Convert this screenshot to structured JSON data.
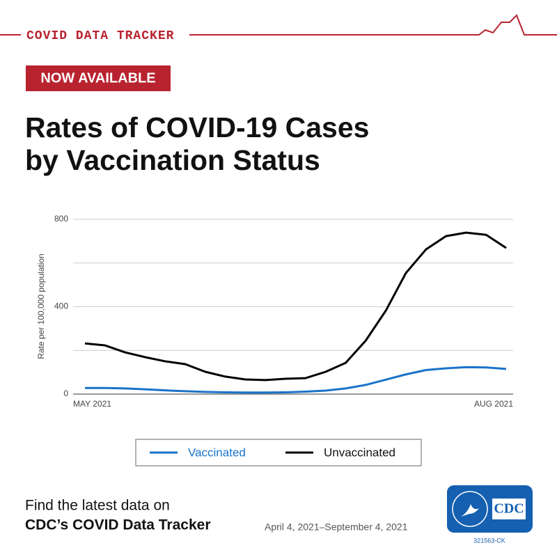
{
  "header": {
    "label": "COVID DATA TRACKER",
    "badge": "NOW AVAILABLE",
    "title_lines": [
      "Rates of COVID-19 Cases",
      "by Vaccination Status"
    ]
  },
  "chart_data": {
    "type": "line",
    "y_label": "Rate per 100,000 population",
    "categories": [
      "MAY 2021",
      null,
      null,
      null,
      null,
      null,
      null,
      null,
      null,
      null,
      null,
      null,
      null,
      null,
      null,
      null,
      null,
      null,
      null,
      null,
      null,
      "AUG 2021"
    ],
    "series": [
      {
        "name": "Vaccinated",
        "color": "#1a73c9",
        "values": [
          28,
          28,
          26,
          22,
          17,
          13,
          10,
          8,
          7,
          7,
          8,
          11,
          16,
          26,
          42,
          66,
          90,
          110,
          118,
          123,
          122,
          115
        ]
      },
      {
        "name": "Unvaccinated",
        "color": "#000000",
        "values": [
          232,
          223,
          191,
          169,
          150,
          137,
          102,
          80,
          67,
          64,
          70,
          73,
          102,
          143,
          245,
          382,
          554,
          662,
          723,
          739,
          729,
          669
        ]
      }
    ],
    "ylim": [
      0,
      800
    ],
    "yticks": [
      0,
      400,
      800
    ],
    "ygrid": [
      0,
      200,
      400,
      600,
      800
    ],
    "grid": true,
    "legend": "bottom"
  },
  "footer": {
    "line1": "Find the latest data on",
    "line2": "CDC’s COVID Data Tracker",
    "date_range": "April 4, 2021–September 4, 2021",
    "logo": "CDC",
    "code": "321563-CK"
  }
}
